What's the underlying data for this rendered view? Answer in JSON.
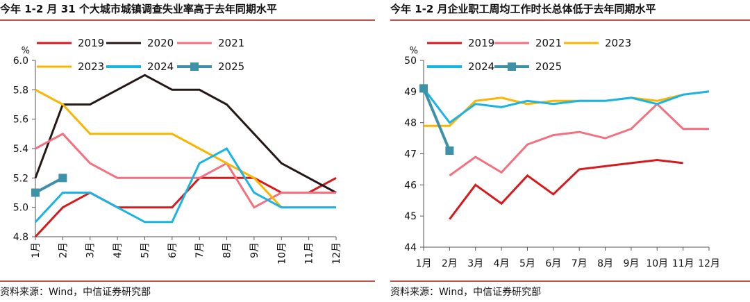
{
  "chart_data": [
    {
      "type": "line",
      "title": "今年 1-2 月 31 个大城市城镇调查失业率高于去年同期水平",
      "ylabel": "%",
      "ylim": [
        4.8,
        6.0
      ],
      "yticks": [
        "4.8",
        "5.0",
        "5.2",
        "5.4",
        "5.6",
        "5.8",
        "6.0"
      ],
      "categories": [
        "1月",
        "2月",
        "3月",
        "4月",
        "5月",
        "6月",
        "7月",
        "8月",
        "9月",
        "10月",
        "11月",
        "12月"
      ],
      "legend_position": "top",
      "series": [
        {
          "name": "2019",
          "color": "#d7191c",
          "values": [
            4.8,
            5.0,
            5.1,
            5.0,
            5.0,
            5.0,
            5.2,
            5.2,
            5.2,
            5.1,
            5.1,
            5.2
          ]
        },
        {
          "name": "2020",
          "color": "#231815",
          "values": [
            5.2,
            5.7,
            5.7,
            5.8,
            5.9,
            5.8,
            5.8,
            5.7,
            5.5,
            5.3,
            5.2,
            5.1
          ]
        },
        {
          "name": "2021",
          "color": "#f4707e",
          "values": [
            5.4,
            5.5,
            5.3,
            5.2,
            5.2,
            5.2,
            5.2,
            5.3,
            5.0,
            5.1,
            5.1,
            5.1
          ]
        },
        {
          "name": "2023",
          "color": "#f9b500",
          "values": [
            5.8,
            5.7,
            5.5,
            5.5,
            5.5,
            5.5,
            5.4,
            5.3,
            5.2,
            5.0,
            5.0,
            5.0
          ]
        },
        {
          "name": "2024",
          "color": "#19b4e6",
          "values": [
            4.9,
            5.1,
            5.1,
            5.0,
            4.9,
            4.9,
            5.3,
            5.4,
            5.1,
            5.0,
            5.0,
            5.0
          ]
        },
        {
          "name": "2025",
          "color": "#3d92a8",
          "markers": true,
          "values": [
            5.1,
            5.2,
            null,
            null,
            null,
            null,
            null,
            null,
            null,
            null,
            null,
            null
          ]
        }
      ],
      "source": "资料来源：Wind，中信证券研究部"
    },
    {
      "type": "line",
      "title": "今年 1-2 月企业职工周均工作时长总体低于去年同期水平",
      "ylabel": "%",
      "ylim": [
        44,
        50
      ],
      "yticks": [
        "44",
        "45",
        "46",
        "47",
        "48",
        "49",
        "50"
      ],
      "categories": [
        "1月",
        "2月",
        "3月",
        "4月",
        "5月",
        "6月",
        "7月",
        "8月",
        "9月",
        "10月",
        "11月",
        "12月"
      ],
      "legend_position": "top",
      "series": [
        {
          "name": "2019",
          "color": "#d7191c",
          "values": [
            null,
            44.9,
            46.0,
            45.4,
            46.3,
            45.7,
            46.5,
            46.6,
            46.7,
            46.8,
            46.7,
            null
          ]
        },
        {
          "name": "2021",
          "color": "#f4707e",
          "values": [
            null,
            46.3,
            46.9,
            46.4,
            47.3,
            47.6,
            47.7,
            47.5,
            47.8,
            48.6,
            47.8,
            47.8
          ]
        },
        {
          "name": "2023",
          "color": "#f9b500",
          "values": [
            47.9,
            47.9,
            48.7,
            48.8,
            48.6,
            48.7,
            48.7,
            48.7,
            48.8,
            48.7,
            48.9,
            49.0
          ]
        },
        {
          "name": "2024",
          "color": "#19b4e6",
          "values": [
            49.1,
            48.0,
            48.6,
            48.5,
            48.7,
            48.6,
            48.7,
            48.7,
            48.8,
            48.6,
            48.9,
            49.0
          ]
        },
        {
          "name": "2025",
          "color": "#3d92a8",
          "markers": true,
          "values": [
            49.1,
            47.1,
            null,
            null,
            null,
            null,
            null,
            null,
            null,
            null,
            null,
            null
          ]
        }
      ],
      "source": "资料来源：Wind，中信证券研究部"
    }
  ]
}
